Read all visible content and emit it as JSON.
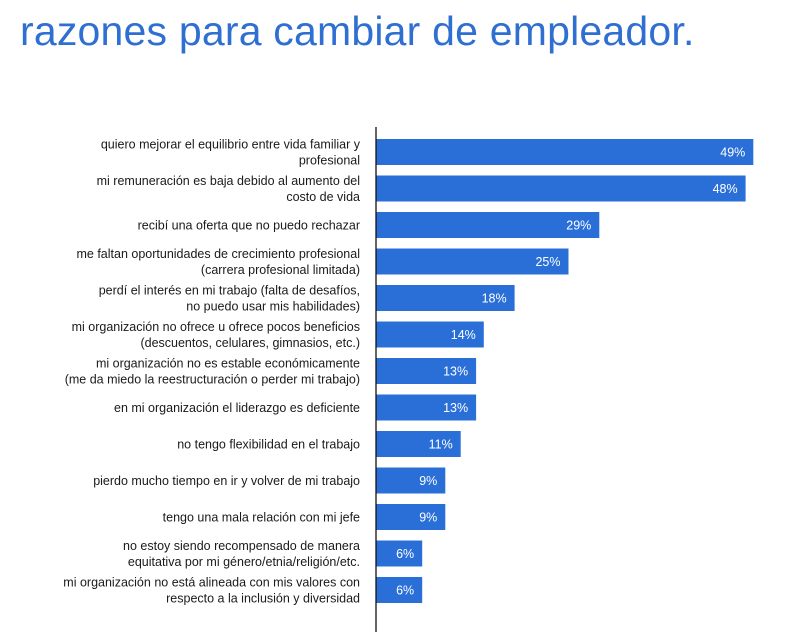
{
  "title": "razones para cambiar de empleador.",
  "colors": {
    "title": "#2f6fd1",
    "bar": "#2a6fd8",
    "axis": "#111111",
    "label": "#1a1a1a",
    "value_label": "#ffffff"
  },
  "chart_data": {
    "type": "bar",
    "orientation": "horizontal",
    "categories": [
      [
        "quiero mejorar el equilibrio entre vida familiar y",
        "profesional"
      ],
      [
        "mi remuneración es baja debido al aumento del",
        "costo de vida"
      ],
      [
        "recibí una oferta que no puedo rechazar"
      ],
      [
        "me faltan oportunidades de crecimiento profesional",
        "(carrera profesional limitada)"
      ],
      [
        "perdí el interés en mi trabajo (falta de desafíos,",
        "no puedo usar mis habilidades)"
      ],
      [
        "mi organización no ofrece u ofrece pocos beneficios",
        "(descuentos, celulares, gimnasios, etc.)"
      ],
      [
        "mi organización no es estable económicamente",
        "(me da miedo la reestructuración o perder mi trabajo)"
      ],
      [
        "en mi organización el liderazgo es deficiente"
      ],
      [
        "no tengo flexibilidad en el trabajo"
      ],
      [
        "pierdo mucho tiempo en ir y volver de mi trabajo"
      ],
      [
        "tengo una mala relación con mi jefe"
      ],
      [
        "no estoy siendo recompensado de manera",
        "equitativa por mi género/etnia/religión/etc."
      ],
      [
        "mi organización no está alineada con mis valores con",
        "respecto a la inclusión y diversidad"
      ]
    ],
    "values": [
      49,
      48,
      29,
      25,
      18,
      14,
      13,
      13,
      11,
      9,
      9,
      6,
      6
    ],
    "value_labels": [
      "49%",
      "48%",
      "29%",
      "25%",
      "18%",
      "14%",
      "13%",
      "13%",
      "11%",
      "9%",
      "9%",
      "6%",
      "6%"
    ],
    "unit": "%",
    "xlim": [
      0,
      50
    ],
    "grid": false,
    "legend": "none"
  }
}
